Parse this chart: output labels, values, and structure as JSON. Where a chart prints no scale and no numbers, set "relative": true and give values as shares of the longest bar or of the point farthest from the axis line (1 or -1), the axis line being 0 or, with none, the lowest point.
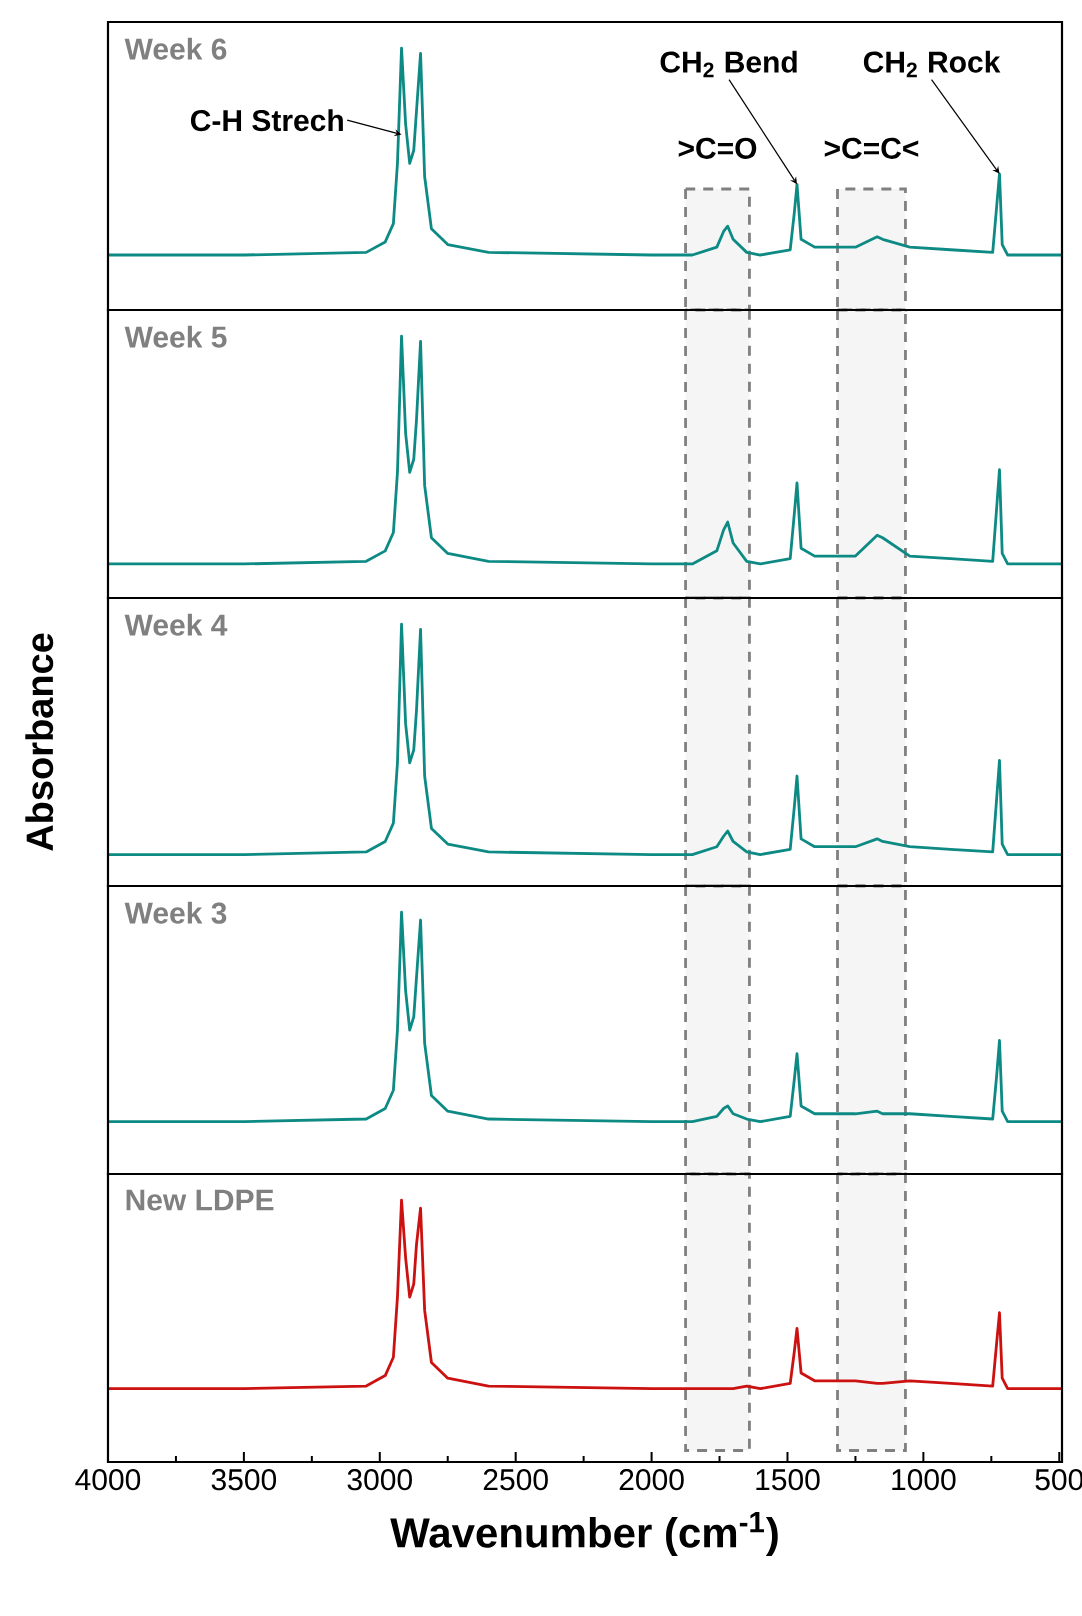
{
  "chart_data": [
    {
      "type": "line",
      "title": "Week 6",
      "relative": true,
      "xlim": [
        4000,
        490
      ],
      "tick_labels": false,
      "x": [
        4000,
        3500,
        3050,
        2980,
        2950,
        2935,
        2920,
        2905,
        2890,
        2875,
        2865,
        2850,
        2835,
        2810,
        2750,
        2600,
        2000,
        1850,
        1760,
        1735,
        1720,
        1700,
        1650,
        1600,
        1490,
        1475,
        1465,
        1450,
        1400,
        1250,
        1170,
        1150,
        1050,
        900,
        745,
        730,
        720,
        710,
        690,
        490
      ],
      "series": [
        {
          "color": "#0e8a84",
          "values": [
            0.21,
            0.21,
            0.22,
            0.26,
            0.33,
            0.56,
            1,
            0.71,
            0.56,
            0.61,
            0.76,
            0.98,
            0.51,
            0.31,
            0.25,
            0.22,
            0.21,
            0.21,
            0.24,
            0.3,
            0.32,
            0.27,
            0.22,
            0.21,
            0.23,
            0.37,
            0.48,
            0.27,
            0.24,
            0.24,
            0.28,
            0.27,
            0.24,
            0.23,
            0.22,
            0.4,
            0.52,
            0.25,
            0.21,
            0.21
          ]
        }
      ],
      "annotations": [
        {
          "text": "C-H Strech",
          "x": 2920,
          "y": 0.67
        },
        {
          "text": "CH$_{2}$ Bend",
          "x": 1465,
          "y": 0.48
        },
        {
          "text": "CH$_{2}$ Rock",
          "x": 720,
          "y": 0.52
        }
      ],
      "bands": [
        {
          "axis": "x",
          "from": 1875,
          "to": 1640,
          "label": ">C=O"
        },
        {
          "axis": "x",
          "from": 1316,
          "to": 1066,
          "label": ">C=C<"
        }
      ]
    },
    {
      "type": "line",
      "title": "Week 5",
      "relative": true,
      "xlim": [
        4000,
        490
      ],
      "tick_labels": false,
      "x": [
        4000,
        3500,
        3050,
        2980,
        2950,
        2935,
        2920,
        2905,
        2890,
        2875,
        2865,
        2850,
        2835,
        2810,
        2750,
        2600,
        2000,
        1850,
        1760,
        1735,
        1720,
        1700,
        1650,
        1600,
        1490,
        1475,
        1465,
        1450,
        1400,
        1250,
        1170,
        1150,
        1050,
        900,
        745,
        730,
        720,
        710,
        690,
        490
      ],
      "series": [
        {
          "color": "#0e8a84",
          "values": [
            0.13,
            0.13,
            0.14,
            0.18,
            0.25,
            0.48,
            1,
            0.63,
            0.48,
            0.53,
            0.68,
            0.98,
            0.43,
            0.23,
            0.17,
            0.14,
            0.13,
            0.13,
            0.18,
            0.26,
            0.29,
            0.21,
            0.14,
            0.13,
            0.15,
            0.32,
            0.44,
            0.19,
            0.16,
            0.16,
            0.24,
            0.23,
            0.16,
            0.15,
            0.14,
            0.35,
            0.49,
            0.17,
            0.13,
            0.13
          ]
        }
      ],
      "bands": [
        {
          "axis": "x",
          "from": 1875,
          "to": 1640
        },
        {
          "axis": "x",
          "from": 1316,
          "to": 1066
        }
      ]
    },
    {
      "type": "line",
      "title": "Week 4",
      "relative": true,
      "xlim": [
        4000,
        490
      ],
      "tick_labels": false,
      "ylabel": "Absorbance",
      "x": [
        4000,
        3500,
        3050,
        2980,
        2950,
        2935,
        2920,
        2905,
        2890,
        2875,
        2865,
        2850,
        2835,
        2810,
        2750,
        2600,
        2000,
        1850,
        1760,
        1735,
        1720,
        1700,
        1650,
        1600,
        1490,
        1475,
        1465,
        1450,
        1400,
        1250,
        1170,
        1150,
        1050,
        900,
        745,
        730,
        720,
        710,
        690,
        490
      ],
      "series": [
        {
          "color": "#0e8a84",
          "values": [
            0.12,
            0.12,
            0.13,
            0.17,
            0.24,
            0.47,
            1,
            0.62,
            0.47,
            0.52,
            0.67,
            0.98,
            0.42,
            0.22,
            0.16,
            0.13,
            0.12,
            0.12,
            0.15,
            0.19,
            0.21,
            0.17,
            0.13,
            0.12,
            0.14,
            0.3,
            0.42,
            0.18,
            0.15,
            0.15,
            0.18,
            0.17,
            0.15,
            0.14,
            0.13,
            0.34,
            0.48,
            0.16,
            0.12,
            0.12
          ]
        }
      ],
      "bands": [
        {
          "axis": "x",
          "from": 1875,
          "to": 1640
        },
        {
          "axis": "x",
          "from": 1316,
          "to": 1066
        }
      ]
    },
    {
      "type": "line",
      "title": "Week 3",
      "relative": true,
      "xlim": [
        4000,
        490
      ],
      "tick_labels": false,
      "x": [
        4000,
        3500,
        3050,
        2980,
        2950,
        2935,
        2920,
        2905,
        2890,
        2875,
        2865,
        2850,
        2835,
        2810,
        2750,
        2600,
        2000,
        1850,
        1760,
        1735,
        1720,
        1700,
        1650,
        1600,
        1490,
        1475,
        1465,
        1450,
        1400,
        1250,
        1170,
        1150,
        1050,
        900,
        745,
        730,
        720,
        710,
        690,
        490
      ],
      "series": [
        {
          "color": "#0e8a84",
          "values": [
            0.2,
            0.2,
            0.21,
            0.25,
            0.32,
            0.55,
            1,
            0.7,
            0.55,
            0.6,
            0.75,
            0.97,
            0.5,
            0.3,
            0.24,
            0.21,
            0.2,
            0.2,
            0.22,
            0.25,
            0.26,
            0.23,
            0.21,
            0.2,
            0.22,
            0.36,
            0.46,
            0.26,
            0.23,
            0.23,
            0.24,
            0.23,
            0.23,
            0.22,
            0.21,
            0.38,
            0.51,
            0.24,
            0.2,
            0.2
          ]
        }
      ],
      "bands": [
        {
          "axis": "x",
          "from": 1875,
          "to": 1640
        },
        {
          "axis": "x",
          "from": 1316,
          "to": 1066
        }
      ]
    },
    {
      "type": "line",
      "title": "New LDPE",
      "relative": true,
      "xlim": [
        4000,
        490
      ],
      "tick_labels": "x",
      "xlabel": "Wavenumber (cm$^{-1}$)",
      "xticks": [
        4000,
        3500,
        3000,
        2500,
        2000,
        1500,
        1000,
        500
      ],
      "x": [
        4000,
        3500,
        3050,
        2980,
        2950,
        2935,
        2920,
        2905,
        2890,
        2875,
        2865,
        2850,
        2835,
        2810,
        2750,
        2600,
        2000,
        1850,
        1760,
        1735,
        1720,
        1700,
        1650,
        1600,
        1490,
        1475,
        1465,
        1450,
        1400,
        1250,
        1170,
        1150,
        1050,
        900,
        745,
        730,
        720,
        710,
        690,
        490
      ],
      "series": [
        {
          "color": "#cc1111",
          "values": [
            0.28,
            0.28,
            0.29,
            0.33,
            0.4,
            0.63,
            1,
            0.78,
            0.63,
            0.68,
            0.83,
            0.97,
            0.58,
            0.38,
            0.32,
            0.29,
            0.28,
            0.28,
            0.28,
            0.28,
            0.28,
            0.28,
            0.29,
            0.28,
            0.3,
            0.42,
            0.51,
            0.34,
            0.31,
            0.31,
            0.3,
            0.3,
            0.31,
            0.3,
            0.29,
            0.46,
            0.57,
            0.32,
            0.28,
            0.28
          ]
        }
      ],
      "bands": [
        {
          "axis": "x",
          "from": 1875,
          "to": 1640
        },
        {
          "axis": "x",
          "from": 1316,
          "to": 1066
        }
      ]
    }
  ]
}
